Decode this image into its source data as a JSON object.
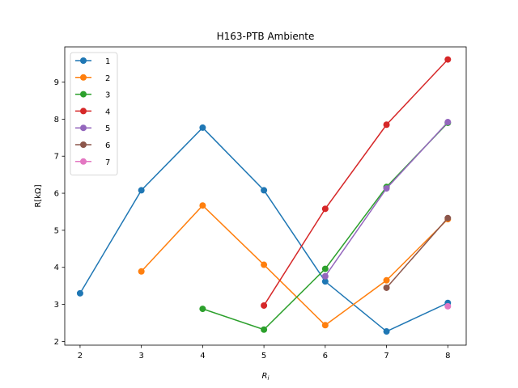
{
  "chart_data": {
    "type": "line",
    "title": "H163-PTB Ambiente",
    "xlabel": "R_i",
    "ylabel": "R[kΩ]",
    "xlim": [
      1.75,
      8.3
    ],
    "ylim": [
      1.9,
      9.95
    ],
    "xticks": [
      2,
      3,
      4,
      5,
      6,
      7,
      8
    ],
    "yticks": [
      2,
      3,
      4,
      5,
      6,
      7,
      8,
      9
    ],
    "grid": false,
    "legend": "top-left",
    "series": [
      {
        "name": "1",
        "color": "#1f77b4",
        "x": [
          2,
          3,
          4,
          5,
          6,
          7,
          8
        ],
        "y": [
          3.3,
          6.08,
          7.77,
          6.08,
          3.62,
          2.27,
          3.04
        ]
      },
      {
        "name": "2",
        "color": "#ff7f0e",
        "x": [
          3,
          4,
          5,
          6,
          7,
          8
        ],
        "y": [
          3.89,
          5.67,
          4.07,
          2.44,
          3.65,
          5.3
        ]
      },
      {
        "name": "3",
        "color": "#2ca02c",
        "x": [
          4,
          5,
          6,
          7,
          8
        ],
        "y": [
          2.88,
          2.32,
          3.96,
          6.17,
          7.9
        ]
      },
      {
        "name": "4",
        "color": "#d62728",
        "x": [
          5,
          6,
          7,
          8
        ],
        "y": [
          2.97,
          5.58,
          7.85,
          9.61
        ]
      },
      {
        "name": "5",
        "color": "#9467bd",
        "x": [
          6,
          7,
          8
        ],
        "y": [
          3.76,
          6.13,
          7.92
        ]
      },
      {
        "name": "6",
        "color": "#8c564b",
        "x": [
          7,
          8
        ],
        "y": [
          3.45,
          5.33
        ]
      },
      {
        "name": "7",
        "color": "#e377c2",
        "x": [
          8
        ],
        "y": [
          2.95
        ]
      }
    ]
  }
}
